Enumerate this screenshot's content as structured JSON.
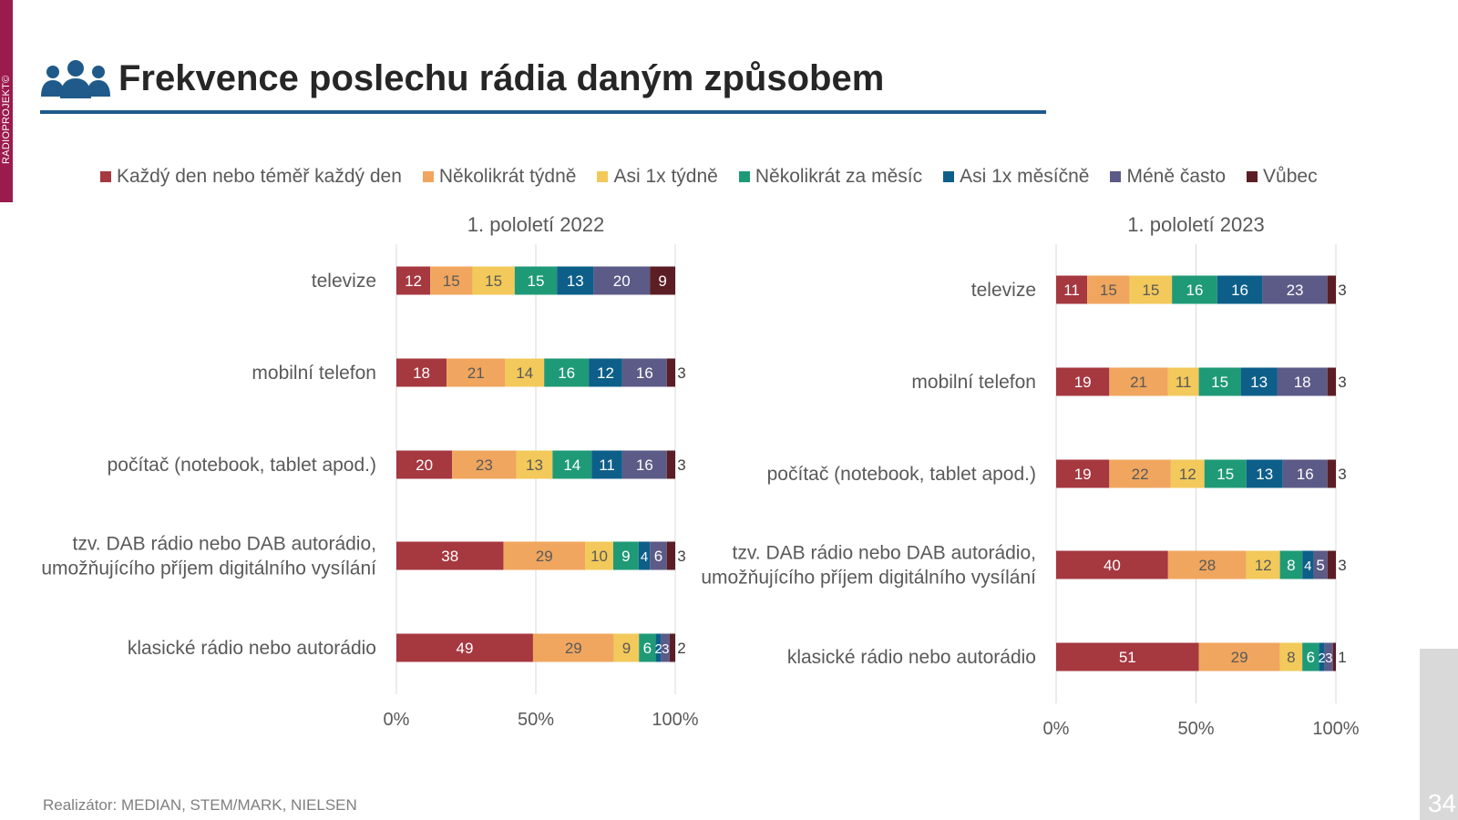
{
  "slide": {
    "side_tab": "RADIOPROJEKT©",
    "title": "Frekvence poslechu rádia daným způsobem",
    "footer": "Realizátor: MEDIAN, STEM/MARK, NIELSEN",
    "page_number": "34",
    "icon": "people-group-icon"
  },
  "legend": [
    {
      "label": "Každý den nebo téměř každý den",
      "color": "#a63840"
    },
    {
      "label": "Několikrát týdně",
      "color": "#f0a65e"
    },
    {
      "label": "Asi 1x týdně",
      "color": "#f2c95a"
    },
    {
      "label": "Několikrát za měsíc",
      "color": "#1f9a77"
    },
    {
      "label": "Asi 1x měsíčně",
      "color": "#0d5f8a"
    },
    {
      "label": "Méně často",
      "color": "#5c5a87"
    },
    {
      "label": "Vůbec",
      "color": "#5b1e24"
    }
  ],
  "chart_data": [
    {
      "type": "bar",
      "orientation": "horizontal",
      "stacked": "percent",
      "title": "1. pololetí 2022",
      "categories": [
        "televize",
        "mobilní telefon",
        "počítač (notebook, tablet apod.)",
        "tzv. DAB rádio nebo DAB autorádio,\numožňujícího příjem digitálního vysílání",
        "klasické rádio nebo autorádio"
      ],
      "series": [
        {
          "name": "Každý den nebo téměř každý den",
          "values": [
            12,
            18,
            20,
            38,
            49
          ]
        },
        {
          "name": "Několikrát týdně",
          "values": [
            15,
            21,
            23,
            29,
            29
          ]
        },
        {
          "name": "Asi 1x týdně",
          "values": [
            15,
            14,
            13,
            10,
            9
          ]
        },
        {
          "name": "Několikrát za měsíc",
          "values": [
            15,
            16,
            14,
            9,
            6
          ]
        },
        {
          "name": "Asi 1x měsíčně",
          "values": [
            13,
            12,
            11,
            4,
            2
          ]
        },
        {
          "name": "Méně často",
          "values": [
            20,
            16,
            16,
            6,
            3
          ]
        },
        {
          "name": "Vůbec",
          "values": [
            9,
            3,
            3,
            3,
            2
          ]
        }
      ],
      "xticks": [
        "0%",
        "50%",
        "100%"
      ],
      "xlim": [
        0,
        100
      ],
      "grid": true
    },
    {
      "type": "bar",
      "orientation": "horizontal",
      "stacked": "percent",
      "title": "1. pololetí 2023",
      "categories": [
        "televize",
        "mobilní telefon",
        "počítač (notebook, tablet apod.)",
        "tzv. DAB rádio nebo DAB autorádio,\numožňujícího příjem digitálního vysílání",
        "klasické rádio nebo autorádio"
      ],
      "series": [
        {
          "name": "Každý den nebo téměř každý den",
          "values": [
            11,
            19,
            19,
            40,
            51
          ]
        },
        {
          "name": "Několikrát týdně",
          "values": [
            15,
            21,
            22,
            28,
            29
          ]
        },
        {
          "name": "Asi 1x týdně",
          "values": [
            15,
            11,
            12,
            12,
            8
          ]
        },
        {
          "name": "Několikrát za měsíc",
          "values": [
            16,
            15,
            15,
            8,
            6
          ]
        },
        {
          "name": "Asi 1x měsíčně",
          "values": [
            16,
            13,
            13,
            4,
            2
          ]
        },
        {
          "name": "Méně často",
          "values": [
            23,
            18,
            16,
            5,
            3
          ]
        },
        {
          "name": "Vůbec",
          "values": [
            3,
            3,
            3,
            3,
            1
          ]
        }
      ],
      "xticks": [
        "0%",
        "50%",
        "100%"
      ],
      "xlim": [
        0,
        100
      ],
      "grid": true
    }
  ]
}
